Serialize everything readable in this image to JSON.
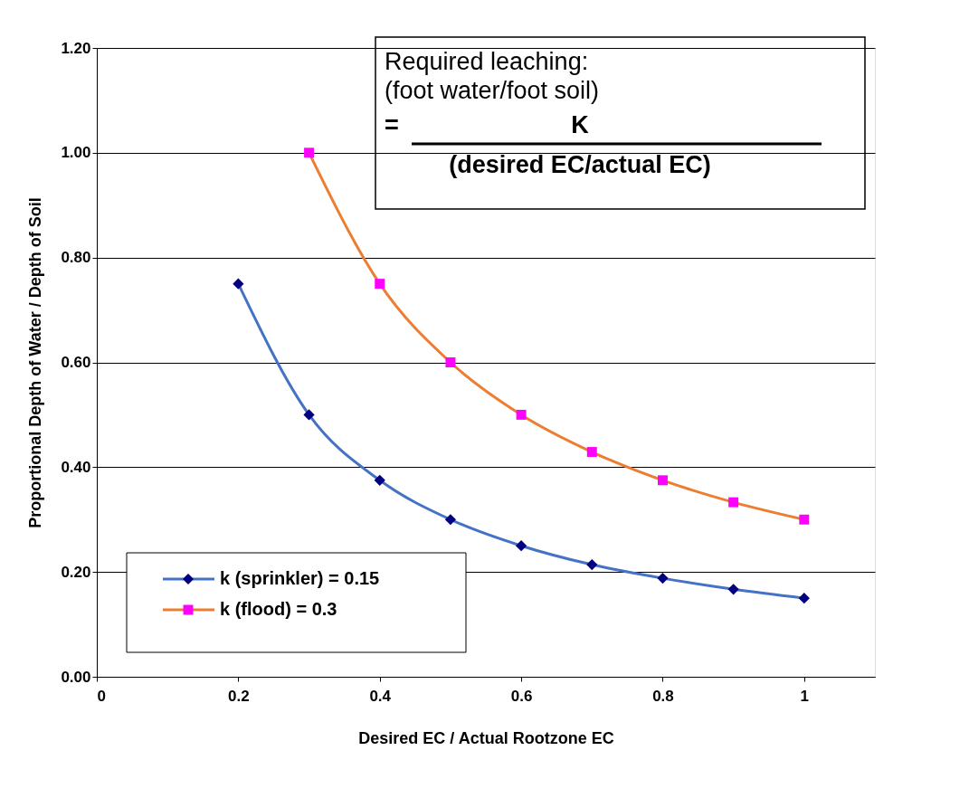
{
  "chart_data": {
    "type": "line",
    "xlabel": "Desired EC / Actual Rootzone EC",
    "ylabel": "Proportional Depth of Water / Depth of Soil",
    "annotations": [
      "Required leaching:",
      "(foot water/foot soil)",
      "=",
      "K",
      "(desired EC/actual EC)"
    ],
    "xlim": [
      0,
      1.1
    ],
    "xticks": [
      0,
      0.2,
      0.4,
      0.6,
      0.8,
      1
    ],
    "ylim": [
      0,
      1.2
    ],
    "yticks": [
      {
        "value": 0,
        "label": "0.00"
      },
      {
        "value": 0.2,
        "label": "0.20"
      },
      {
        "value": 0.4,
        "label": "0.40"
      },
      {
        "value": 0.6,
        "label": "0.60"
      },
      {
        "value": 0.8,
        "label": "0.80"
      },
      {
        "value": 1.0,
        "label": "1.00"
      },
      {
        "value": 1.2,
        "label": "1.20"
      }
    ],
    "grid": "y",
    "legend": "bottom left",
    "line_style": "solid",
    "series": [
      {
        "name": "k (sprinkler) = 0.15",
        "color": "#4472c4",
        "colors": [
          "#000080",
          "#000080",
          "#000080",
          "#000080",
          "#000080",
          "#000080",
          "#000080",
          "#000080",
          "#000080"
        ],
        "marker": "diamond",
        "x": [
          0.2,
          0.3,
          0.4,
          0.5,
          0.6,
          0.7,
          0.8,
          0.9,
          1.0
        ],
        "values": [
          0.75,
          0.5,
          0.375,
          0.3,
          0.25,
          0.214,
          0.188,
          0.167,
          0.15
        ]
      },
      {
        "name": "k (flood) = 0.3",
        "color": "#ed7d31",
        "colors": [
          "#ff00ff",
          "#ff00ff",
          "#ff00ff",
          "#ff00ff",
          "#ff00ff",
          "#ff00ff",
          "#ff00ff",
          "#ff00ff"
        ],
        "marker": "square",
        "x": [
          0.3,
          0.4,
          0.5,
          0.6,
          0.7,
          0.8,
          0.9,
          1.0
        ],
        "values": [
          1.0,
          0.75,
          0.6,
          0.5,
          0.429,
          0.375,
          0.333,
          0.3
        ]
      }
    ]
  }
}
